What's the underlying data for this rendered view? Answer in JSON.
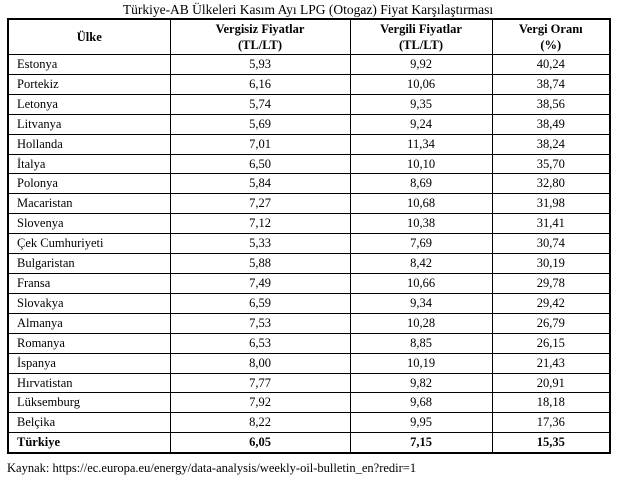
{
  "title": "Türkiye-AB Ülkeleri Kasım Ayı LPG (Otogaz) Fiyat Karşılaştırması",
  "source": "Kaynak: https://ec.europa.eu/energy/data-analysis/weekly-oil-bulletin_en?redir=1",
  "table": {
    "headers": [
      {
        "line1": "Ülke",
        "line2": ""
      },
      {
        "line1": "Vergisiz Fiyatlar",
        "line2": "(TL/LT)"
      },
      {
        "line1": "Vergili Fiyatlar",
        "line2": "(TL/LT)"
      },
      {
        "line1": "Vergi Oranı",
        "line2": "(%)"
      }
    ],
    "rows": [
      [
        "Estonya",
        "5,93",
        "9,92",
        "40,24"
      ],
      [
        "Portekiz",
        "6,16",
        "10,06",
        "38,74"
      ],
      [
        "Letonya",
        "5,74",
        "9,35",
        "38,56"
      ],
      [
        "Litvanya",
        "5,69",
        "9,24",
        "38,49"
      ],
      [
        "Hollanda",
        "7,01",
        "11,34",
        "38,24"
      ],
      [
        "İtalya",
        "6,50",
        "10,10",
        "35,70"
      ],
      [
        "Polonya",
        "5,84",
        "8,69",
        "32,80"
      ],
      [
        "Macaristan",
        "7,27",
        "10,68",
        "31,98"
      ],
      [
        "Slovenya",
        "7,12",
        "10,38",
        "31,41"
      ],
      [
        "Çek Cumhuriyeti",
        "5,33",
        "7,69",
        "30,74"
      ],
      [
        "Bulgaristan",
        "5,88",
        "8,42",
        "30,19"
      ],
      [
        "Fransa",
        "7,49",
        "10,66",
        "29,78"
      ],
      [
        "Slovakya",
        "6,59",
        "9,34",
        "29,42"
      ],
      [
        "Almanya",
        "7,53",
        "10,28",
        "26,79"
      ],
      [
        "Romanya",
        "6,53",
        "8,85",
        "26,15"
      ],
      [
        "İspanya",
        "8,00",
        "10,19",
        "21,43"
      ],
      [
        "Hırvatistan",
        "7,77",
        "9,82",
        "20,91"
      ],
      [
        "Lüksemburg",
        "7,92",
        "9,68",
        "18,18"
      ],
      [
        "Belçika",
        "8,22",
        "9,95",
        "17,36"
      ]
    ],
    "highlight_row": [
      "Türkiye",
      "6,05",
      "7,15",
      "15,35"
    ]
  },
  "chart_data": {
    "type": "table",
    "title": "Türkiye-AB Ülkeleri Kasım Ayı LPG (Otogaz) Fiyat Karşılaştırması",
    "columns": [
      "Ülke",
      "Vergisiz Fiyatlar (TL/LT)",
      "Vergili Fiyatlar (TL/LT)",
      "Vergi Oranı (%)"
    ],
    "rows": [
      {
        "ulke": "Estonya",
        "vergisiz": 5.93,
        "vergili": 9.92,
        "vergi_orani": 40.24
      },
      {
        "ulke": "Portekiz",
        "vergisiz": 6.16,
        "vergili": 10.06,
        "vergi_orani": 38.74
      },
      {
        "ulke": "Letonya",
        "vergisiz": 5.74,
        "vergili": 9.35,
        "vergi_orani": 38.56
      },
      {
        "ulke": "Litvanya",
        "vergisiz": 5.69,
        "vergili": 9.24,
        "vergi_orani": 38.49
      },
      {
        "ulke": "Hollanda",
        "vergisiz": 7.01,
        "vergili": 11.34,
        "vergi_orani": 38.24
      },
      {
        "ulke": "İtalya",
        "vergisiz": 6.5,
        "vergili": 10.1,
        "vergi_orani": 35.7
      },
      {
        "ulke": "Polonya",
        "vergisiz": 5.84,
        "vergili": 8.69,
        "vergi_orani": 32.8
      },
      {
        "ulke": "Macaristan",
        "vergisiz": 7.27,
        "vergili": 10.68,
        "vergi_orani": 31.98
      },
      {
        "ulke": "Slovenya",
        "vergisiz": 7.12,
        "vergili": 10.38,
        "vergi_orani": 31.41
      },
      {
        "ulke": "Çek Cumhuriyeti",
        "vergisiz": 5.33,
        "vergili": 7.69,
        "vergi_orani": 30.74
      },
      {
        "ulke": "Bulgaristan",
        "vergisiz": 5.88,
        "vergili": 8.42,
        "vergi_orani": 30.19
      },
      {
        "ulke": "Fransa",
        "vergisiz": 7.49,
        "vergili": 10.66,
        "vergi_orani": 29.78
      },
      {
        "ulke": "Slovakya",
        "vergisiz": 6.59,
        "vergili": 9.34,
        "vergi_orani": 29.42
      },
      {
        "ulke": "Almanya",
        "vergisiz": 7.53,
        "vergili": 10.28,
        "vergi_orani": 26.79
      },
      {
        "ulke": "Romanya",
        "vergisiz": 6.53,
        "vergili": 8.85,
        "vergi_orani": 26.15
      },
      {
        "ulke": "İspanya",
        "vergisiz": 8.0,
        "vergili": 10.19,
        "vergi_orani": 21.43
      },
      {
        "ulke": "Hırvatistan",
        "vergisiz": 7.77,
        "vergili": 9.82,
        "vergi_orani": 20.91
      },
      {
        "ulke": "Lüksemburg",
        "vergisiz": 7.92,
        "vergili": 9.68,
        "vergi_orani": 18.18
      },
      {
        "ulke": "Belçika",
        "vergisiz": 8.22,
        "vergili": 9.95,
        "vergi_orani": 17.36
      },
      {
        "ulke": "Türkiye",
        "vergisiz": 6.05,
        "vergili": 7.15,
        "vergi_orani": 15.35
      }
    ]
  }
}
